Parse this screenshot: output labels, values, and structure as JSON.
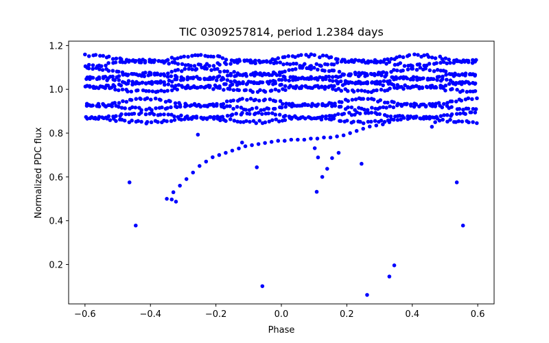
{
  "chart_data": {
    "type": "scatter",
    "title": "TIC 0309257814, period 1.2384 days",
    "xlabel": "Phase",
    "ylabel": "Normalized PDC flux",
    "xlim": [
      -0.65,
      0.65
    ],
    "ylim": [
      0.02,
      1.22
    ],
    "xticks": [
      -0.6,
      -0.4,
      -0.2,
      0.0,
      0.2,
      0.4,
      0.6
    ],
    "xtick_labels": [
      "−0.6",
      "−0.4",
      "−0.2",
      "0.0",
      "0.2",
      "0.4",
      "0.6"
    ],
    "yticks": [
      0.2,
      0.4,
      0.6,
      0.8,
      1.0,
      1.2
    ],
    "ytick_labels": [
      "0.2",
      "0.4",
      "0.6",
      "0.8",
      "1.0",
      "1.2"
    ],
    "marker_color": "#0000ff",
    "bands": [
      {
        "name": "band-1.14",
        "center": 1.14,
        "amplitude": 0.015
      },
      {
        "name": "band-1.12",
        "center": 1.12,
        "amplitude": 0.01
      },
      {
        "name": "band-1.08",
        "center": 1.08,
        "amplitude": 0.015
      },
      {
        "name": "band-1.06",
        "center": 1.06,
        "amplitude": 0.012
      },
      {
        "name": "band-1.04",
        "center": 1.04,
        "amplitude": 0.012
      },
      {
        "name": "band-1.02",
        "center": 1.02,
        "amplitude": 0.01
      },
      {
        "name": "band-1.00",
        "center": 1.0,
        "amplitude": 0.01
      },
      {
        "name": "band-0.94",
        "center": 0.94,
        "amplitude": 0.015
      },
      {
        "name": "band-0.92",
        "center": 0.92,
        "amplitude": 0.01
      },
      {
        "name": "band-0.88",
        "center": 0.88,
        "amplitude": 0.01
      },
      {
        "name": "band-0.86",
        "center": 0.86,
        "amplitude": 0.01
      }
    ],
    "band_x_range": [
      -0.6,
      0.6
    ],
    "band_point_count": 120,
    "ingress_curve": [
      [
        -0.35,
        0.5
      ],
      [
        -0.33,
        0.53
      ],
      [
        -0.31,
        0.56
      ],
      [
        -0.29,
        0.59
      ],
      [
        -0.27,
        0.62
      ],
      [
        -0.25,
        0.65
      ],
      [
        -0.23,
        0.67
      ],
      [
        -0.21,
        0.69
      ],
      [
        -0.19,
        0.7
      ],
      [
        -0.17,
        0.71
      ],
      [
        -0.15,
        0.72
      ],
      [
        -0.13,
        0.73
      ],
      [
        -0.11,
        0.74
      ],
      [
        -0.09,
        0.745
      ],
      [
        -0.07,
        0.75
      ],
      [
        -0.05,
        0.755
      ],
      [
        -0.03,
        0.76
      ],
      [
        -0.01,
        0.765
      ],
      [
        0.01,
        0.765
      ],
      [
        0.03,
        0.77
      ],
      [
        0.05,
        0.77
      ],
      [
        0.07,
        0.77
      ],
      [
        0.09,
        0.775
      ],
      [
        0.11,
        0.775
      ],
      [
        0.13,
        0.78
      ],
      [
        0.15,
        0.78
      ],
      [
        0.17,
        0.785
      ],
      [
        0.19,
        0.79
      ],
      [
        0.21,
        0.8
      ],
      [
        0.23,
        0.81
      ],
      [
        0.25,
        0.82
      ],
      [
        0.27,
        0.83
      ],
      [
        0.29,
        0.835
      ],
      [
        0.31,
        0.84
      ],
      [
        0.33,
        0.85
      ]
    ],
    "outliers": [
      [
        -0.464,
        0.575
      ],
      [
        -0.445,
        0.378
      ],
      [
        -0.335,
        0.497
      ],
      [
        -0.322,
        0.487
      ],
      [
        -0.255,
        0.793
      ],
      [
        -0.12,
        0.757
      ],
      [
        -0.075,
        0.644
      ],
      [
        -0.058,
        0.101
      ],
      [
        0.102,
        0.731
      ],
      [
        0.108,
        0.532
      ],
      [
        0.112,
        0.689
      ],
      [
        0.125,
        0.6
      ],
      [
        0.14,
        0.637
      ],
      [
        0.155,
        0.686
      ],
      [
        0.175,
        0.71
      ],
      [
        0.245,
        0.66
      ],
      [
        0.262,
        0.061
      ],
      [
        0.33,
        0.145
      ],
      [
        0.345,
        0.196
      ],
      [
        0.536,
        0.575
      ],
      [
        0.555,
        0.378
      ],
      [
        0.46,
        0.829
      ],
      [
        0.47,
        0.85
      ]
    ]
  }
}
